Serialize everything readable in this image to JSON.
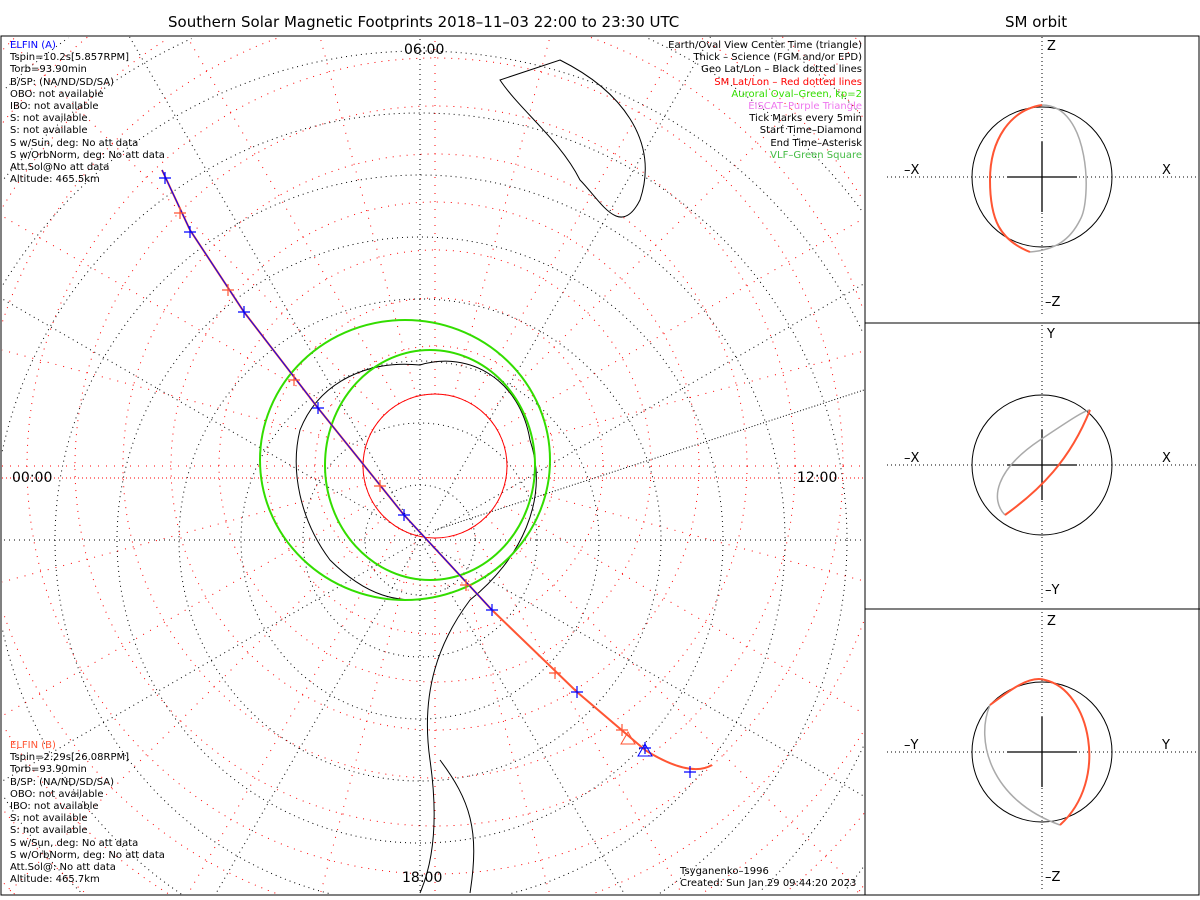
{
  "title": "Southern Solar Magnetic Footprints 2018-11-03 22:00 to 23:30 UTC",
  "orbit_title": "SM orbit",
  "elfin_a": {
    "name": "ELFIN (A)",
    "lines": [
      "Tspin=10.2s[5.857RPM]",
      "Torb=93.90min",
      "B/SP: (NA/ND/SD/SA)",
      "OBO: not available",
      "IBO: not available",
      "S: not available",
      "S: not available",
      "S w/Sun, deg: No att data",
      "S w/OrbNorm, deg: No att data",
      "Att.Sol@No att data",
      "Altitude: 465.5km"
    ]
  },
  "elfin_b": {
    "name": "ELFIN (B)",
    "lines": [
      "Tspin=2.29s[26.08RPM]",
      "Torb=93.90min",
      "B/SP: (NA/ND/SD/SA)",
      "OBO: not available",
      "IBO: not available",
      "S: not available",
      "S: not available",
      "S w/Sun, deg: No att data",
      "S w/OrbNorm, deg: No att data",
      "Att.Sol@: No att data",
      "Altitude: 465.7km"
    ]
  },
  "legend": [
    {
      "text": "Earth/Oval View Center Time (triangle)",
      "color": "#000000"
    },
    {
      "text": "Thick - Science (FGM and/or EPD)",
      "color": "#000000"
    },
    {
      "text": "Geo Lat/Lon - Black dotted lines",
      "color": "#000000"
    },
    {
      "text": "SM Lat/Lon - Red dotted lines",
      "color": "#ff0000"
    },
    {
      "text": "Auroral Oval-Green, kp=2",
      "color": "#33dd00"
    },
    {
      "text": "EISCAT-Purple Triangle",
      "color": "#ee77ee"
    },
    {
      "text": "Tick Marks every 5min",
      "color": "#000000"
    },
    {
      "text": "Start Time-Diamond",
      "color": "#000000"
    },
    {
      "text": "End Time-Asterisk",
      "color": "#000000"
    },
    {
      "text": "VLF-Green Square",
      "color": "#44bb44"
    }
  ],
  "time_labels": {
    "left": "00:00",
    "right": "12:00",
    "bottom": "18:00",
    "top": "06:00"
  },
  "model": "Tsyganenko-1996",
  "created": "Created: Sun Jan 29 09:44:20 2023",
  "orbit_panels": [
    {
      "top": "Z",
      "bottom": "-Z",
      "left": "-X",
      "right": "X"
    },
    {
      "top": "Y",
      "bottom": "-Y",
      "left": "-X",
      "right": "X"
    },
    {
      "top": "Z",
      "bottom": "-Z",
      "left": "-Y",
      "right": "Y"
    }
  ],
  "colors": {
    "elfin_a": "#0000ff",
    "elfin_b": "#ff5533",
    "oval": "#33dd00",
    "sm_grid": "#ff0000"
  }
}
